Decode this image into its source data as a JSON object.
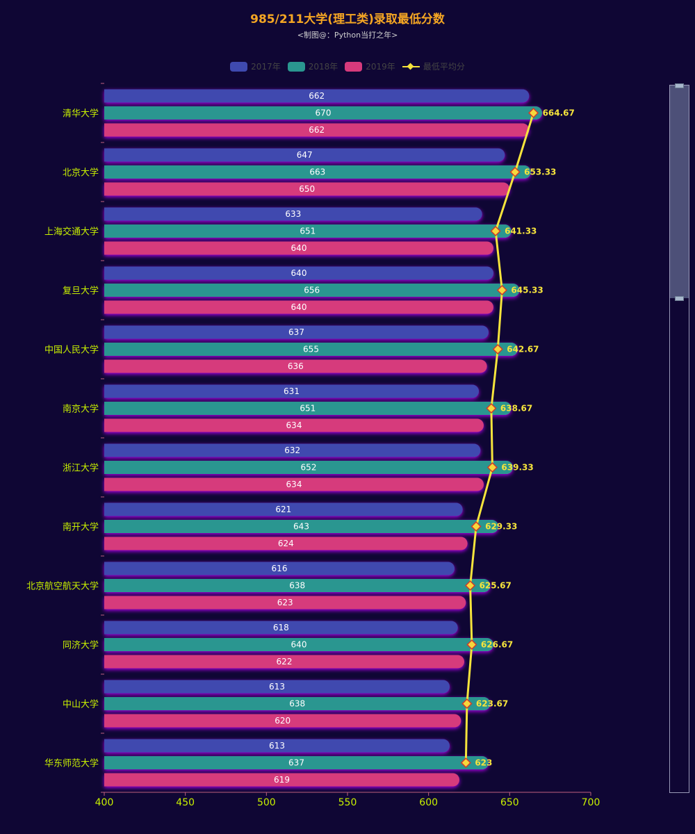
{
  "title": "985/211大学(理工类)录取最低分数",
  "subtitle": "<制图@：Python当打之年>",
  "legend": [
    {
      "label": "2017年",
      "color": "#3f4aaf",
      "kind": "bar"
    },
    {
      "label": "2018年",
      "color": "#2a9690",
      "kind": "bar"
    },
    {
      "label": "2019年",
      "color": "#d63a7c",
      "kind": "bar"
    },
    {
      "label": "最低平均分",
      "color": "#f6e43c",
      "kind": "line"
    }
  ],
  "colors": {
    "background": "#0f0634",
    "category_label": "#c8f000",
    "axis_label": "#c8f000",
    "line_label": "#f6e43c"
  },
  "chart_data": {
    "type": "bar",
    "orientation": "horizontal",
    "categories": [
      "清华大学",
      "北京大学",
      "上海交通大学",
      "复旦大学",
      "中国人民大学",
      "南京大学",
      "浙江大学",
      "南开大学",
      "北京航空航天大学",
      "同济大学",
      "中山大学",
      "华东师范大学"
    ],
    "series": [
      {
        "name": "2017年",
        "type": "bar",
        "color": "#3f4aaf",
        "values": [
          662,
          647,
          633,
          640,
          637,
          631,
          632,
          621,
          616,
          618,
          613,
          613
        ]
      },
      {
        "name": "2018年",
        "type": "bar",
        "color": "#2a9690",
        "values": [
          670,
          663,
          651,
          656,
          655,
          651,
          652,
          643,
          638,
          640,
          638,
          637
        ]
      },
      {
        "name": "2019年",
        "type": "bar",
        "color": "#d63a7c",
        "values": [
          662,
          650,
          640,
          640,
          636,
          634,
          634,
          624,
          623,
          622,
          620,
          619
        ]
      },
      {
        "name": "最低平均分",
        "type": "line",
        "color": "#f6e43c",
        "values": [
          664.67,
          653.33,
          641.33,
          645.33,
          642.67,
          638.67,
          639.33,
          629.33,
          625.67,
          626.67,
          623.67,
          623
        ]
      }
    ],
    "xlim": [
      400,
      700
    ],
    "xticks": [
      400,
      450,
      500,
      550,
      600,
      650,
      700
    ],
    "grid": false,
    "legend_position": "top-center",
    "has_datazoom_slider": true
  }
}
